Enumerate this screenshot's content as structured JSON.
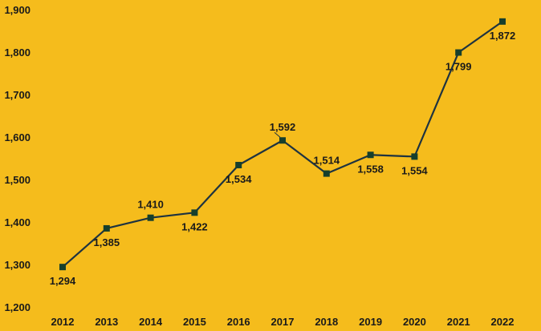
{
  "chart_data": {
    "type": "line",
    "title": "",
    "xlabel": "",
    "ylabel": "",
    "x": [
      "2012",
      "2013",
      "2014",
      "2015",
      "2016",
      "2017",
      "2018",
      "2019",
      "2020",
      "2021",
      "2022"
    ],
    "series": [
      {
        "values": [
          1294,
          1385,
          1410,
          1422,
          1534,
          1592,
          1514,
          1558,
          1554,
          1799,
          1872
        ],
        "data_labels": [
          "1,294",
          "1,385",
          "1,410",
          "1,422",
          "1,534",
          "1,592",
          "1,514",
          "1,558",
          "1,554",
          "1,799",
          "1,872"
        ]
      }
    ],
    "ylim": [
      1200,
      1900
    ],
    "yticks": [
      1200,
      1300,
      1400,
      1500,
      1600,
      1700,
      1800,
      1900
    ],
    "ytick_labels": [
      "1,200",
      "1,300",
      "1,400",
      "1,500",
      "1,600",
      "1,700",
      "1,800",
      "1,900"
    ],
    "grid": false,
    "legend": "none",
    "colors": {
      "background": "#F5BC1C",
      "line": "#1E3340",
      "marker": "#163F2C",
      "text": "#1A1A1A"
    }
  }
}
